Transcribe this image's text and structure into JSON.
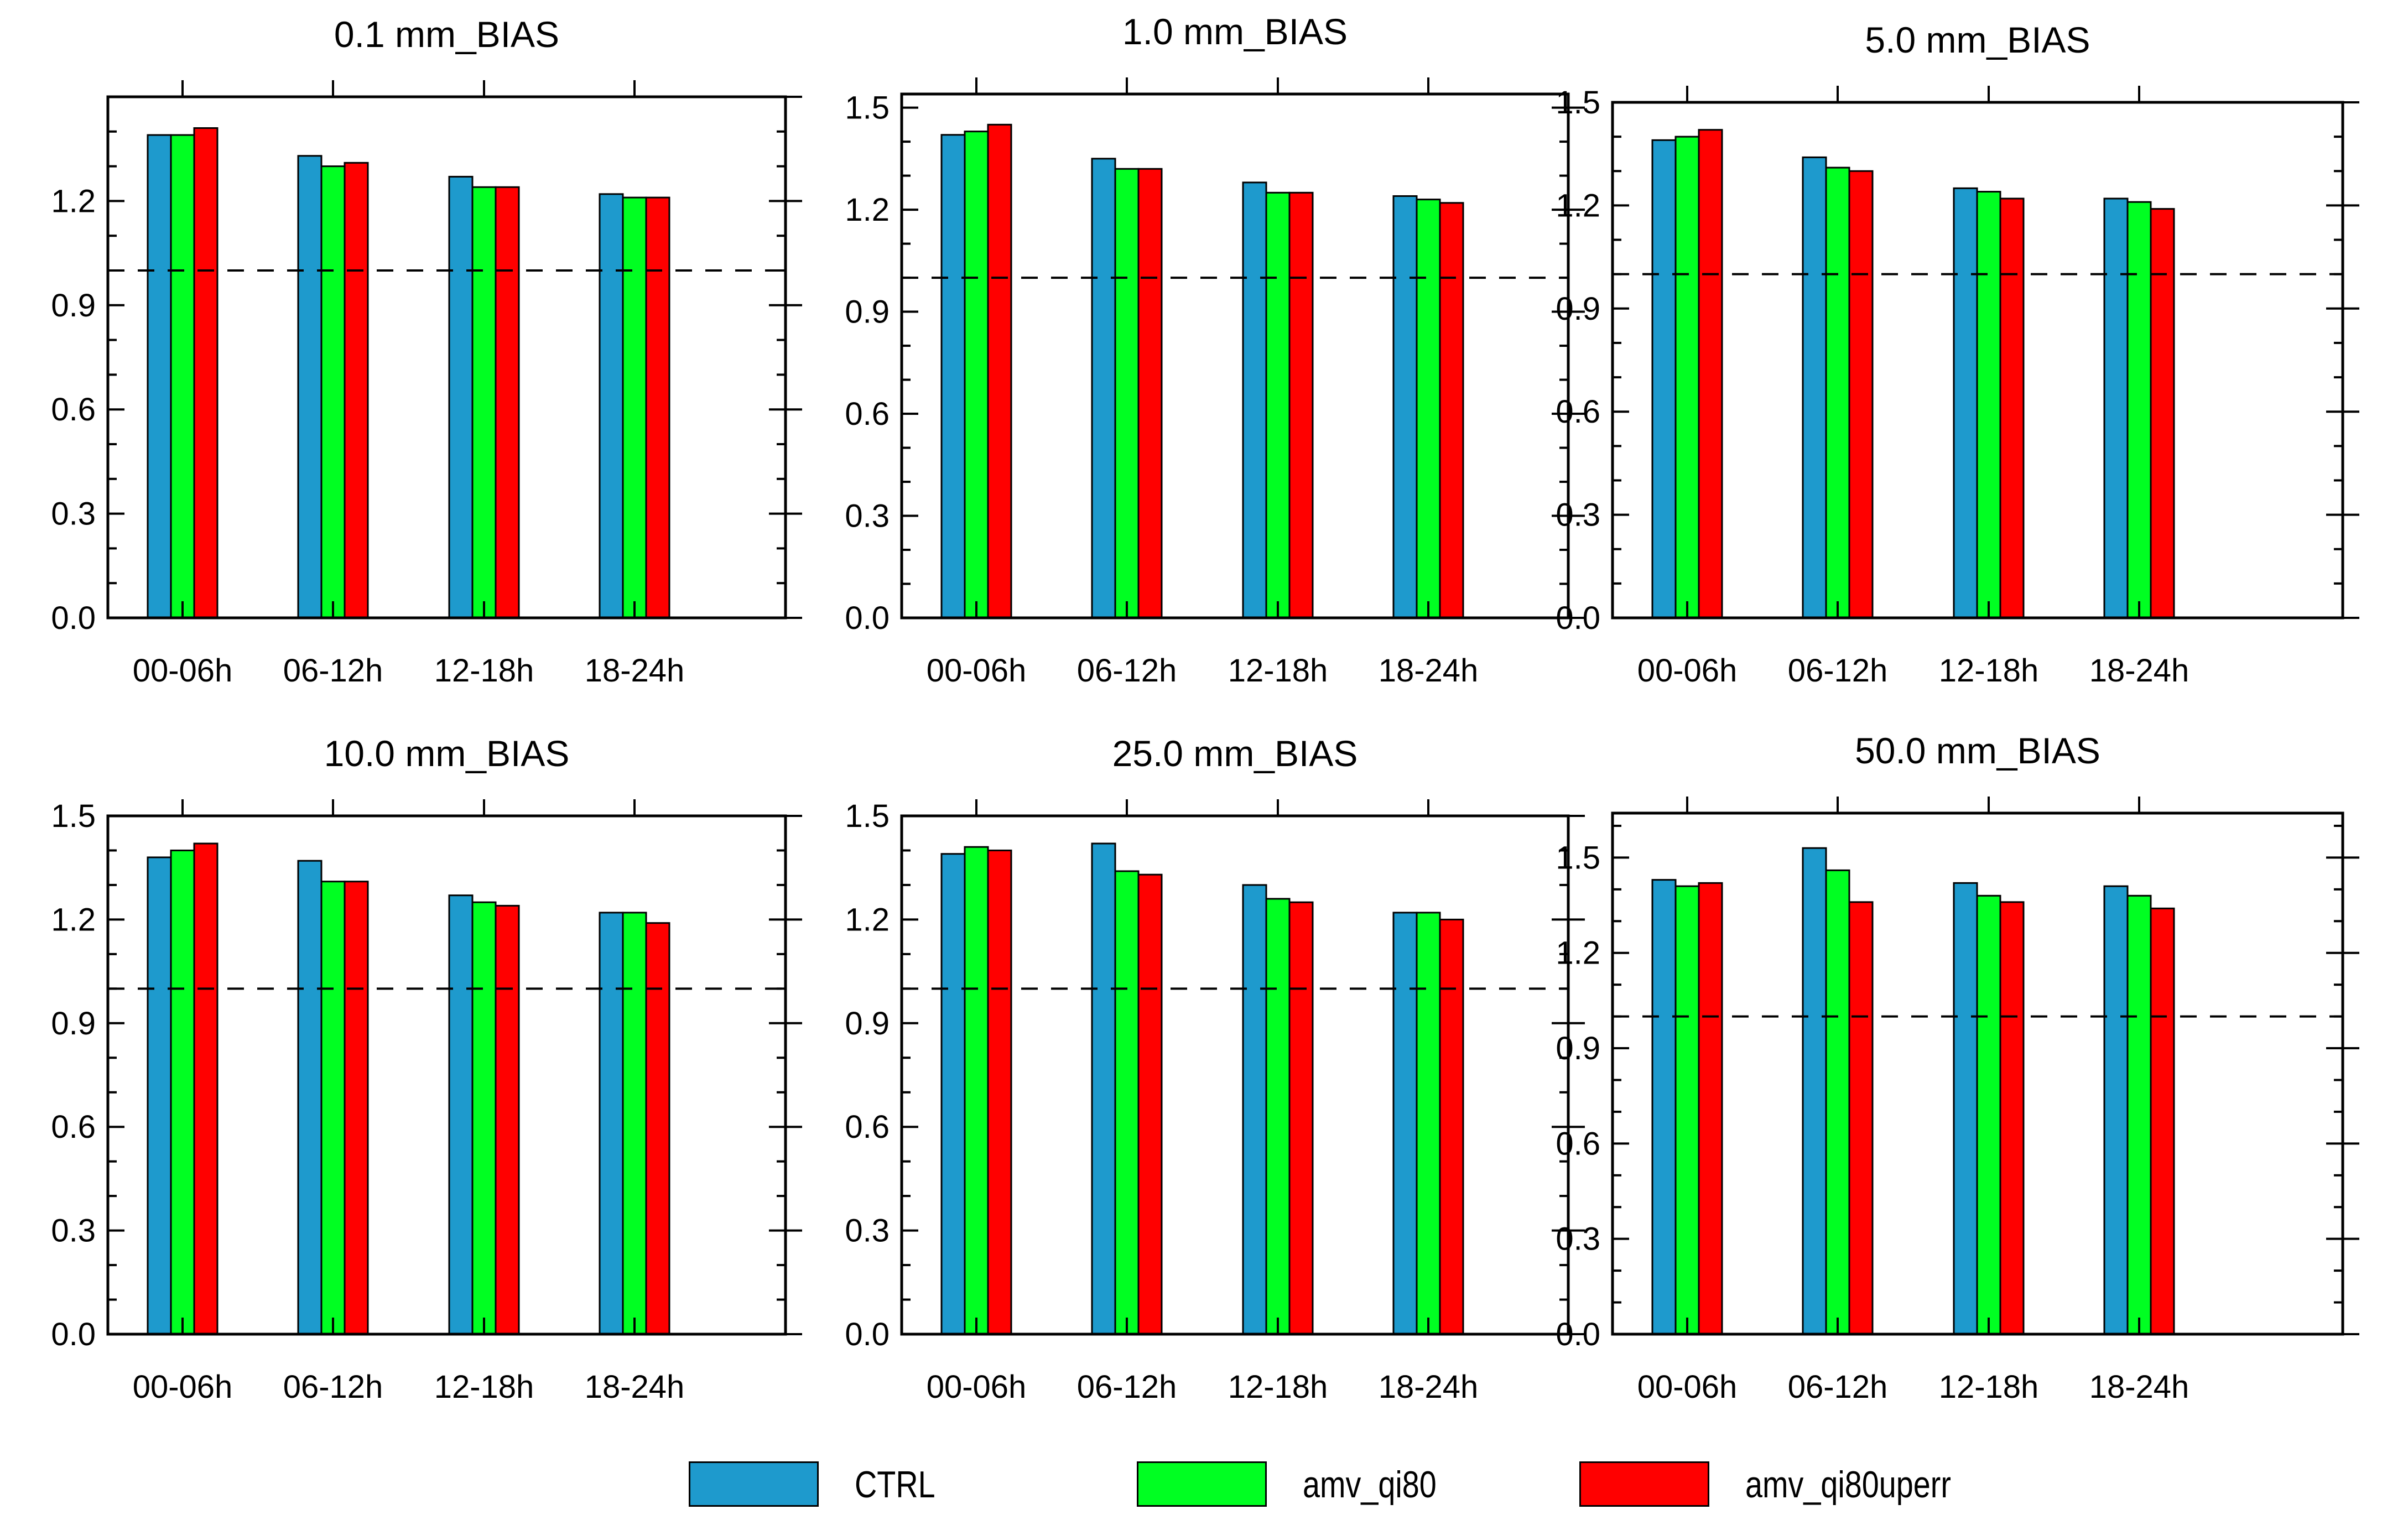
{
  "chart_data": [
    {
      "type": "bar",
      "title": "0.1 mm_BIAS",
      "categories": [
        "00-06h",
        "06-12h",
        "12-18h",
        "18-24h"
      ],
      "ylim": [
        0,
        1.5
      ],
      "yticks": [
        "0.0",
        "0.3",
        "0.6",
        "0.9",
        "1.2"
      ],
      "reference_line": 1.0,
      "series": [
        {
          "name": "CTRL",
          "values": [
            1.39,
            1.33,
            1.27,
            1.22
          ]
        },
        {
          "name": "amv_qi80",
          "values": [
            1.39,
            1.3,
            1.24,
            1.21
          ]
        },
        {
          "name": "amv_qi80uperr",
          "values": [
            1.41,
            1.31,
            1.24,
            1.21
          ]
        }
      ]
    },
    {
      "type": "bar",
      "title": "1.0 mm_BIAS",
      "categories": [
        "00-06h",
        "06-12h",
        "12-18h",
        "18-24h"
      ],
      "ylim": [
        0,
        1.54
      ],
      "yticks": [
        "0.0",
        "0.3",
        "0.6",
        "0.9",
        "1.2",
        "1.5"
      ],
      "reference_line": 1.0,
      "series": [
        {
          "name": "CTRL",
          "values": [
            1.42,
            1.35,
            1.28,
            1.24
          ]
        },
        {
          "name": "amv_qi80",
          "values": [
            1.43,
            1.32,
            1.25,
            1.23
          ]
        },
        {
          "name": "amv_qi80uperr",
          "values": [
            1.45,
            1.32,
            1.25,
            1.22
          ]
        }
      ]
    },
    {
      "type": "bar",
      "title": "5.0 mm_BIAS",
      "categories": [
        "00-06h",
        "06-12h",
        "12-18h",
        "18-24h"
      ],
      "ylim": [
        0,
        1.5
      ],
      "yticks": [
        "0.0",
        "0.3",
        "0.6",
        "0.9",
        "1.2",
        "1.5"
      ],
      "reference_line": 1.0,
      "series": [
        {
          "name": "CTRL",
          "values": [
            1.39,
            1.34,
            1.25,
            1.22
          ]
        },
        {
          "name": "amv_qi80",
          "values": [
            1.4,
            1.31,
            1.24,
            1.21
          ]
        },
        {
          "name": "amv_qi80uperr",
          "values": [
            1.42,
            1.3,
            1.22,
            1.19
          ]
        }
      ]
    },
    {
      "type": "bar",
      "title": "10.0 mm_BIAS",
      "categories": [
        "00-06h",
        "06-12h",
        "12-18h",
        "18-24h"
      ],
      "ylim": [
        0,
        1.5
      ],
      "yticks": [
        "0.0",
        "0.3",
        "0.6",
        "0.9",
        "1.2",
        "1.5"
      ],
      "reference_line": 1.0,
      "series": [
        {
          "name": "CTRL",
          "values": [
            1.38,
            1.37,
            1.27,
            1.22
          ]
        },
        {
          "name": "amv_qi80",
          "values": [
            1.4,
            1.31,
            1.25,
            1.22
          ]
        },
        {
          "name": "amv_qi80uperr",
          "values": [
            1.42,
            1.31,
            1.24,
            1.19
          ]
        }
      ]
    },
    {
      "type": "bar",
      "title": "25.0 mm_BIAS",
      "categories": [
        "00-06h",
        "06-12h",
        "12-18h",
        "18-24h"
      ],
      "ylim": [
        0,
        1.5
      ],
      "yticks": [
        "0.0",
        "0.3",
        "0.6",
        "0.9",
        "1.2",
        "1.5"
      ],
      "reference_line": 1.0,
      "series": [
        {
          "name": "CTRL",
          "values": [
            1.39,
            1.42,
            1.3,
            1.22
          ]
        },
        {
          "name": "amv_qi80",
          "values": [
            1.41,
            1.34,
            1.26,
            1.22
          ]
        },
        {
          "name": "amv_qi80uperr",
          "values": [
            1.4,
            1.33,
            1.25,
            1.2
          ]
        }
      ]
    },
    {
      "type": "bar",
      "title": "50.0 mm_BIAS",
      "categories": [
        "00-06h",
        "06-12h",
        "12-18h",
        "18-24h"
      ],
      "ylim": [
        0,
        1.64
      ],
      "yticks": [
        "0.0",
        "0.3",
        "0.6",
        "0.9",
        "1.2",
        "1.5"
      ],
      "reference_line": 1.0,
      "series": [
        {
          "name": "CTRL",
          "values": [
            1.43,
            1.53,
            1.42,
            1.41
          ]
        },
        {
          "name": "amv_qi80",
          "values": [
            1.41,
            1.46,
            1.38,
            1.38
          ]
        },
        {
          "name": "amv_qi80uperr",
          "values": [
            1.42,
            1.36,
            1.36,
            1.34
          ]
        }
      ]
    }
  ],
  "legend": {
    "items": [
      {
        "label": "CTRL",
        "color": "#1e9acd"
      },
      {
        "label": "amv_qi80",
        "color": "#00ff22"
      },
      {
        "label": "amv_qi80uperr",
        "color": "#ff0000"
      }
    ]
  }
}
